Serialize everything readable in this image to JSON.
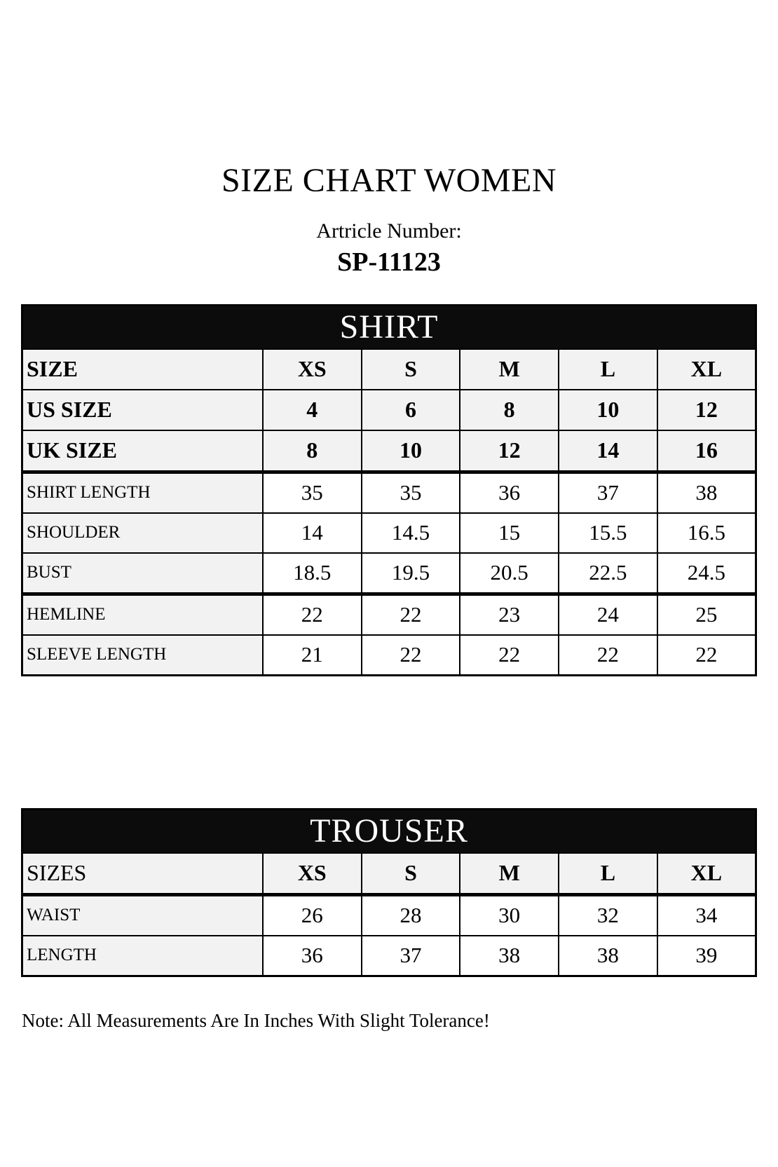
{
  "page": {
    "title": "SIZE CHART WOMEN",
    "article_label": "Artricle Number:",
    "article_number": "SP-11123",
    "note": "Note: All Measurements Are In Inches With Slight Tolerance!"
  },
  "colors": {
    "header_bar_bg": "#0c0c0c",
    "header_bar_text": "#ffffff",
    "label_cell_bg": "#f2f2f2",
    "value_cell_bg": "#ffffff",
    "border": "#000000"
  },
  "shirt_table": {
    "header": "SHIRT",
    "size_rows": [
      {
        "label": "SIZE",
        "values": [
          "XS",
          "S",
          "M",
          "L",
          "XL"
        ]
      },
      {
        "label": "US SIZE",
        "values": [
          "4",
          "6",
          "8",
          "10",
          "12"
        ]
      },
      {
        "label": "UK SIZE",
        "values": [
          "8",
          "10",
          "12",
          "14",
          "16"
        ]
      }
    ],
    "measurement_rows": [
      {
        "label": "SHIRT LENGTH",
        "values": [
          "35",
          "35",
          "36",
          "37",
          "38"
        ]
      },
      {
        "label": "SHOULDER",
        "values": [
          "14",
          "14.5",
          "15",
          "15.5",
          "16.5"
        ]
      },
      {
        "label": "BUST",
        "values": [
          "18.5",
          "19.5",
          "20.5",
          "22.5",
          "24.5"
        ]
      },
      {
        "label": "HEMLINE",
        "values": [
          "22",
          "22",
          "23",
          "24",
          "25"
        ]
      },
      {
        "label": "SLEEVE LENGTH",
        "values": [
          "21",
          "22",
          "22",
          "22",
          "22"
        ]
      }
    ]
  },
  "trouser_table": {
    "header": "TROUSER",
    "size_rows": [
      {
        "label": "SIZES",
        "values": [
          "XS",
          "S",
          "M",
          "L",
          "XL"
        ]
      }
    ],
    "measurement_rows": [
      {
        "label": "WAIST",
        "values": [
          "26",
          "28",
          "30",
          "32",
          "34"
        ]
      },
      {
        "label": "LENGTH",
        "values": [
          "36",
          "37",
          "38",
          "38",
          "39"
        ]
      }
    ]
  }
}
